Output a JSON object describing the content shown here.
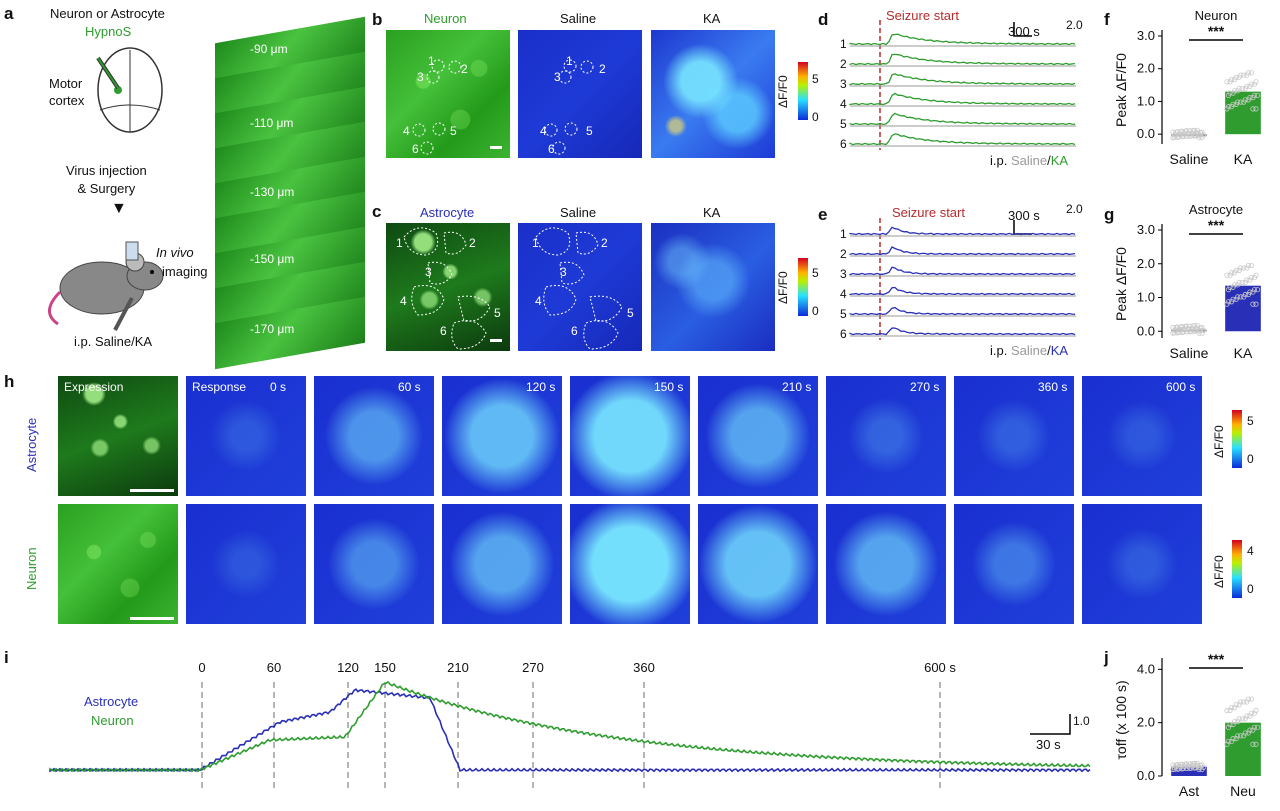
{
  "panel_labels": {
    "a": "a",
    "b": "b",
    "c": "c",
    "d": "d",
    "e": "e",
    "f": "f",
    "g": "g",
    "h": "h",
    "i": "i",
    "j": "j"
  },
  "panel_a": {
    "title": "Neuron or Astrocyte",
    "sensor": "HypnoS",
    "region": "Motor\ncortex",
    "step": "Virus injection\n& Surgery",
    "imaging_italic": "In vivo",
    "imaging": "imaging",
    "injection": "i.p. Saline/KA",
    "depths": [
      "-90 μm",
      "-110 μm",
      "-130 μm",
      "-150 μm",
      "-170 μm"
    ]
  },
  "panel_b": {
    "titles": [
      "Neuron",
      "Saline",
      "KA"
    ],
    "roi_labels": [
      "1",
      "2",
      "3",
      "4",
      "5",
      "6"
    ],
    "colorbar": {
      "label": "ΔF/F0",
      "max": "5",
      "min": "0"
    }
  },
  "panel_c": {
    "titles": [
      "Astrocyte",
      "Saline",
      "KA"
    ],
    "roi_labels": [
      "1",
      "2",
      "3",
      "4",
      "5",
      "6"
    ],
    "colorbar": {
      "label": "ΔF/F0",
      "max": "5",
      "min": "0"
    }
  },
  "panel_d": {
    "annotation": "Seizure start",
    "scale_x": "300 s",
    "scale_y": "2.0",
    "rows": [
      "1",
      "2",
      "3",
      "4",
      "5",
      "6"
    ],
    "legend_prefix": "i.p. ",
    "legend_saline": "Saline",
    "legend_sep": "/",
    "legend_ka": "KA",
    "colors": {
      "saline": "#9a9a9a",
      "ka": "#2e9c2e"
    }
  },
  "panel_e": {
    "annotation": "Seizure start",
    "scale_x": "300 s",
    "scale_y": "2.0",
    "rows": [
      "1",
      "2",
      "3",
      "4",
      "5",
      "6"
    ],
    "legend_prefix": "i.p. ",
    "legend_saline": "Saline",
    "legend_sep": "/",
    "legend_ka": "KA",
    "colors": {
      "saline": "#9a9a9a",
      "ka": "#2a2fb8"
    }
  },
  "panel_h": {
    "row_labels": [
      "Astrocyte",
      "Neuron"
    ],
    "expression_label": "Expression",
    "response_label": "Response",
    "time_labels": [
      "0 s",
      "60 s",
      "120 s",
      "150 s",
      "210 s",
      "270 s",
      "360 s",
      "600 s"
    ],
    "colorbar_astro": {
      "label": "ΔF/F0",
      "max": "5",
      "min": "0"
    },
    "colorbar_neuron": {
      "label": "ΔF/F0",
      "max": "4",
      "min": "0"
    }
  },
  "panel_i": {
    "time_marks": [
      "0",
      "60",
      "120",
      "150",
      "210",
      "270",
      "360",
      "600 s"
    ],
    "legend": [
      "Astrocyte",
      "Neuron"
    ],
    "scale_x": "30 s",
    "scale_y": "1.0"
  },
  "chart_data": [
    {
      "id": "f",
      "type": "bar",
      "title": "Neuron",
      "ylabel": "Peak ΔF/F0",
      "categories": [
        "Saline",
        "KA"
      ],
      "values": [
        0.0,
        1.3
      ],
      "ylim": [
        -0.3,
        3.0
      ],
      "yticks": [
        "0.0",
        "1.0",
        "2.0",
        "3.0"
      ],
      "significance": "***",
      "colors": [
        "#9a9a9a",
        "#2e9c2e"
      ]
    },
    {
      "id": "g",
      "type": "bar",
      "title": "Astrocyte",
      "ylabel": "Peak ΔF/F0",
      "categories": [
        "Saline",
        "KA"
      ],
      "values": [
        0.05,
        1.35
      ],
      "ylim": [
        -0.2,
        3.0
      ],
      "yticks": [
        "0.0",
        "1.0",
        "2.0",
        "3.0"
      ],
      "significance": "***",
      "colors": [
        "#9a9a9a",
        "#2a2fb8"
      ]
    },
    {
      "id": "j",
      "type": "bar",
      "title": "",
      "ylabel": "τoff (x 100 s)",
      "categories": [
        "Ast",
        "Neu"
      ],
      "values": [
        0.35,
        2.0
      ],
      "ylim": [
        0,
        4.2
      ],
      "yticks": [
        "0.0",
        "2.0",
        "4.0"
      ],
      "significance": "***",
      "colors": [
        "#2a2fb8",
        "#2e9c2e"
      ]
    }
  ]
}
